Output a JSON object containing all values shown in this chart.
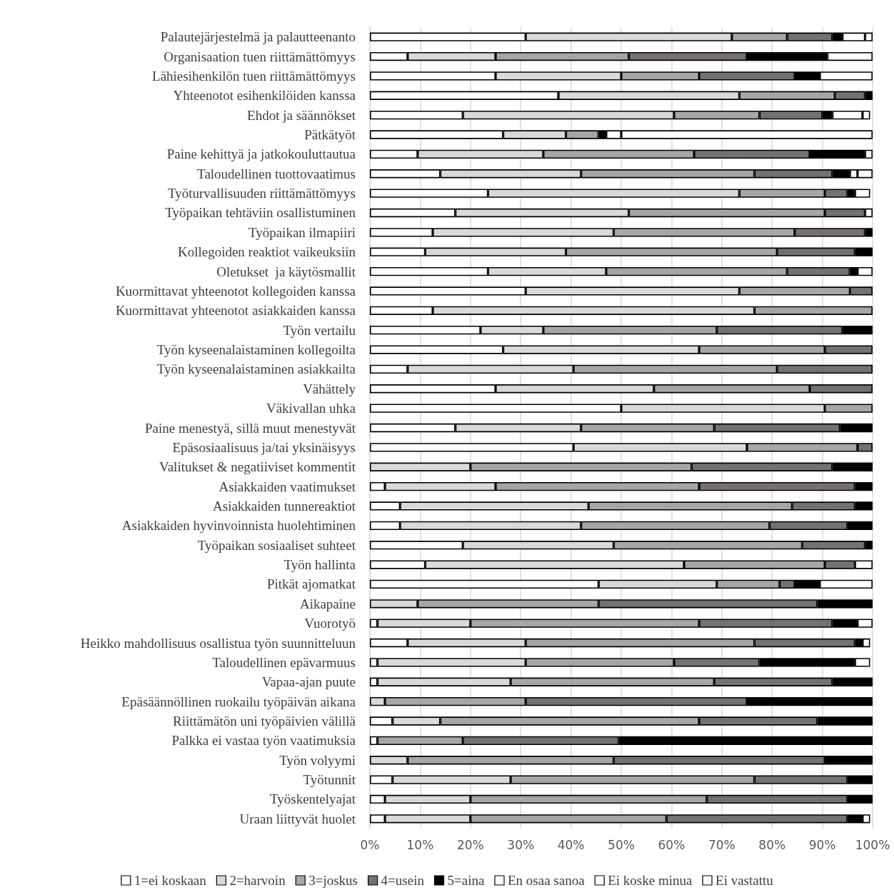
{
  "chart_data": {
    "type": "bar",
    "orientation": "horizontal",
    "stacked": true,
    "grid": "x",
    "legend": "bottom",
    "categories": [
      "Palautejärjestelmä ja palautteenanto",
      "Organisaation tuen riittämättömyys",
      "Lähiesihenkilön tuen riittämättömyys",
      "Yhteenotot esihenkilöiden kanssa",
      "Ehdot ja säännökset",
      "Pätkätyöt",
      "Paine kehittyä ja jatkokouluttautua",
      "Taloudellinen tuottovaatimus",
      "Työturvallisuuden riittämättömyys",
      "Työpaikan tehtäviin osallistuminen",
      "Työpaikan ilmapiiri",
      "Kollegoiden reaktiot vaikeuksiin",
      "Oletukset  ja käytösmallit",
      "Kuormittavat yhteenotot kollegoiden kanssa",
      "Kuormittavat yhteenotot asiakkaiden kanssa",
      "Työn vertailu",
      "Työn kyseenalaistaminen kollegoilta",
      "Työn kyseenalaistaminen asiakkailta",
      "Vähättely",
      "Väkivallan uhka",
      "Paine menestyä, sillä muut menestyvät",
      "Epäsosiaalisuus ja/tai yksinäisyys",
      "Valitukset & negatiiviset kommentit",
      "Asiakkaiden vaatimukset",
      "Asiakkaiden tunnereaktiot",
      "Asiakkaiden hyvinvoinnista huolehtiminen",
      "Työpaikan sosiaaliset suhteet",
      "Työn hallinta",
      "Pitkät ajomatkat",
      "Aikapaine",
      "Vuorotyö",
      "Heikko mahdollisuus osallistua työn suunnitteluun",
      "Taloudellinen epävarmuus",
      "Vapaa-ajan puute",
      "Epäsäännöllinen ruokailu työpäivän aikana",
      "Riittämätön uni työpäivien välillä",
      "Palkka ei vastaa työn vaatimuksia",
      "Työn volyymi",
      "Työtunnit",
      "Työskentelyajat",
      "Uraan liittyvät huolet"
    ],
    "xlim": [
      0,
      100
    ],
    "xticks": [
      {
        "value": 0,
        "label": "0%"
      },
      {
        "value": 10,
        "label": "10%"
      },
      {
        "value": 20,
        "label": "20%"
      },
      {
        "value": 30,
        "label": "30%"
      },
      {
        "value": 40,
        "label": "40%"
      },
      {
        "value": 50,
        "label": "50%"
      },
      {
        "value": 60,
        "label": "60%"
      },
      {
        "value": 70,
        "label": "70%"
      },
      {
        "value": 80,
        "label": "80%"
      },
      {
        "value": 90,
        "label": "90%"
      },
      {
        "value": 100,
        "label": "100%"
      }
    ],
    "series": [
      {
        "name": "1=ei koskaan",
        "color": "#ffffff",
        "values": [
          31,
          7.5,
          25,
          37.5,
          18.5,
          26.5,
          9.5,
          14,
          23.5,
          17,
          12.5,
          11,
          23.5,
          31,
          12.5,
          22,
          26.5,
          7.5,
          25,
          50,
          17,
          40.5,
          null,
          3,
          6,
          6,
          18.5,
          11,
          45.5,
          null,
          1.5,
          7.5,
          1.5,
          1.5,
          null,
          4.5,
          1.5,
          null,
          4.5,
          3,
          3
        ]
      },
      {
        "name": "2=harvoin",
        "color": "#d9d9d9",
        "values": [
          41,
          17.5,
          25,
          36,
          42,
          12.5,
          25,
          28,
          50,
          34.5,
          36,
          28,
          23.5,
          42.5,
          64,
          12.5,
          39,
          33,
          31.5,
          40.5,
          25,
          34.5,
          20,
          22,
          37.5,
          36,
          30,
          51.5,
          23.5,
          9.5,
          18.5,
          23.5,
          29.5,
          26.5,
          3,
          9.5,
          null,
          7.5,
          23.5,
          17,
          17
        ]
      },
      {
        "name": "3=joskus",
        "color": "#a6a6a6",
        "values": [
          11,
          26.5,
          15.5,
          19,
          17,
          6.5,
          30,
          34.5,
          17,
          39,
          36,
          42,
          36,
          22,
          23.5,
          34.5,
          25,
          40.5,
          31,
          9.5,
          26.5,
          22,
          44,
          40.5,
          40.5,
          37.5,
          37.5,
          28,
          12.5,
          36,
          45.5,
          45.5,
          29.5,
          40.5,
          28,
          51.5,
          17,
          41,
          48.5,
          47,
          39
        ]
      },
      {
        "name": "4=usein",
        "color": "#767171",
        "values": [
          9,
          23.5,
          19,
          6,
          12.5,
          null,
          23,
          15.5,
          4.5,
          8,
          14,
          15.5,
          12.5,
          4.5,
          null,
          25,
          9.5,
          19,
          12.5,
          null,
          25,
          3,
          28,
          31,
          12.5,
          15.5,
          12.5,
          6,
          3,
          43.5,
          26.5,
          20,
          17,
          23.5,
          44,
          23.5,
          31,
          42,
          18.5,
          28,
          36
        ]
      },
      {
        "name": "5=aina",
        "color": "#000000",
        "values": [
          2,
          16,
          5,
          1.5,
          2,
          1.5,
          11,
          3.5,
          1.5,
          null,
          1.5,
          3.5,
          1.5,
          null,
          null,
          6,
          null,
          null,
          null,
          null,
          6.5,
          null,
          8,
          3.5,
          3.5,
          5,
          1.5,
          null,
          5,
          11,
          5,
          1.5,
          19,
          8,
          25,
          11,
          50.5,
          9.5,
          5,
          5,
          3
        ]
      },
      {
        "name": "En osaa sanoa",
        "color": "#ffffff",
        "values": [
          4.5,
          9,
          10.5,
          null,
          6,
          3,
          1.5,
          1.5,
          3,
          1.5,
          null,
          null,
          3,
          null,
          null,
          null,
          null,
          null,
          null,
          null,
          null,
          null,
          null,
          null,
          null,
          null,
          null,
          3.5,
          10.5,
          null,
          3,
          1.5,
          3,
          null,
          null,
          null,
          null,
          null,
          null,
          null,
          1.5
        ]
      },
      {
        "name": "Ei koske minua",
        "color": "#ffffff",
        "values": [
          1.5,
          null,
          null,
          null,
          1.5,
          50,
          null,
          3,
          null,
          null,
          null,
          null,
          null,
          null,
          null,
          null,
          null,
          null,
          null,
          null,
          null,
          null,
          null,
          null,
          null,
          null,
          null,
          null,
          null,
          null,
          null,
          null,
          null,
          null,
          null,
          null,
          null,
          null,
          null,
          null,
          null
        ]
      },
      {
        "name": "Ei vastattu",
        "color": "#ffffff",
        "values": [
          null,
          null,
          null,
          null,
          null,
          null,
          null,
          null,
          null,
          null,
          null,
          null,
          null,
          null,
          null,
          null,
          null,
          null,
          null,
          null,
          null,
          null,
          null,
          null,
          null,
          null,
          null,
          null,
          null,
          null,
          null,
          null,
          null,
          null,
          null,
          null,
          null,
          null,
          null,
          null,
          null
        ]
      }
    ]
  }
}
